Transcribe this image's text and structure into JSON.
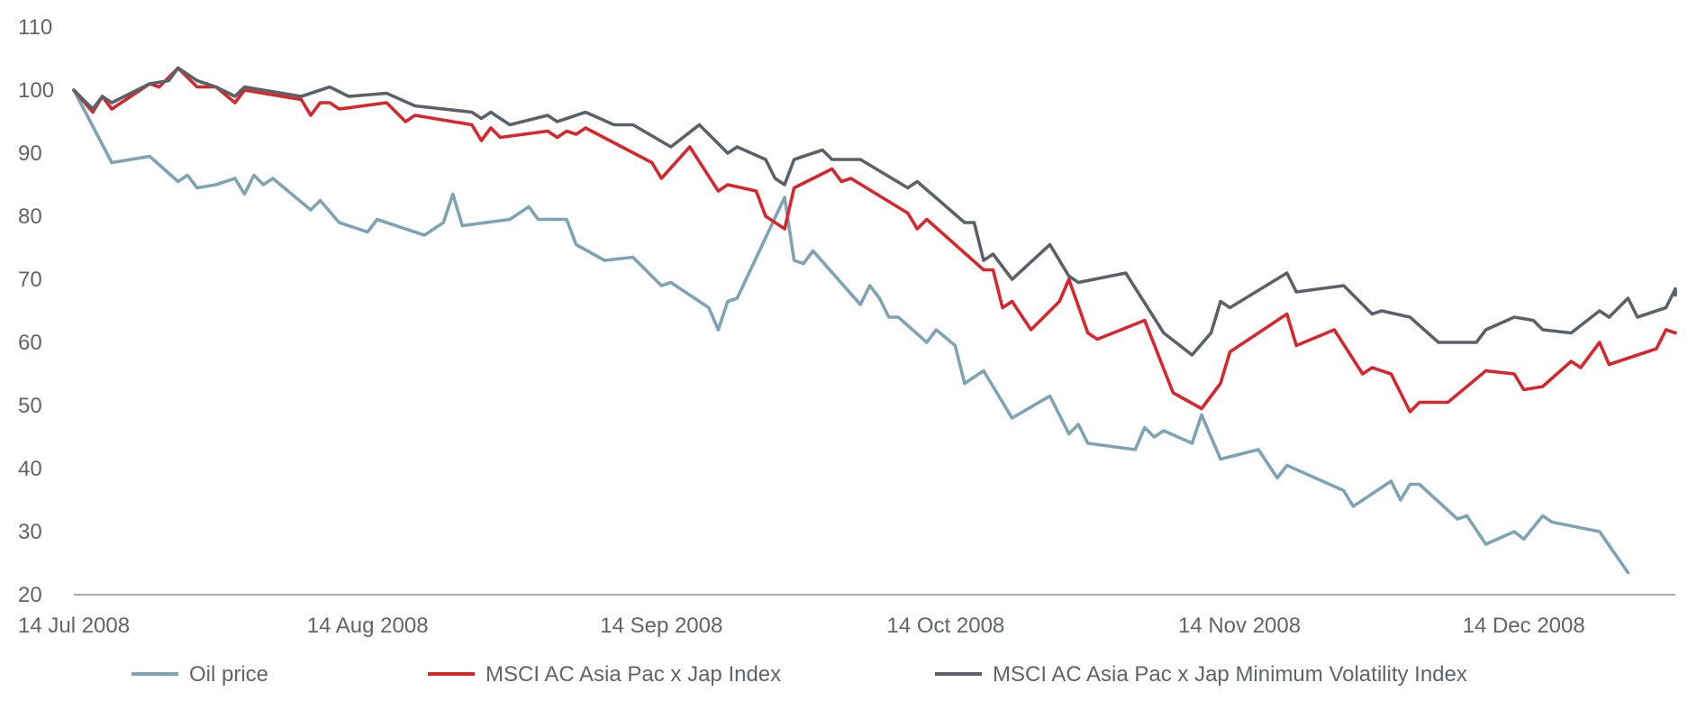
{
  "chart_data": {
    "type": "line",
    "title": "",
    "xlabel": "",
    "ylabel": "",
    "ylim": [
      20,
      110
    ],
    "yticks": [
      20,
      30,
      40,
      50,
      60,
      70,
      80,
      90,
      100,
      110
    ],
    "xlim": [
      "2008-07-14",
      "2008-12-30"
    ],
    "xticks": [
      {
        "date": "2008-07-14",
        "label": "14 Jul 2008"
      },
      {
        "date": "2008-08-14",
        "label": "14 Aug 2008"
      },
      {
        "date": "2008-09-14",
        "label": "14 Sep 2008"
      },
      {
        "date": "2008-10-14",
        "label": "14 Oct 2008"
      },
      {
        "date": "2008-11-14",
        "label": "14 Nov 2008"
      },
      {
        "date": "2008-12-14",
        "label": "14 Dec 2008"
      }
    ],
    "grid": false,
    "legend": "bottom",
    "series": [
      {
        "name": "Oil price",
        "color": "#7ea3b5",
        "points": [
          [
            "2008-07-14",
            100
          ],
          [
            "2008-07-18",
            88.5
          ],
          [
            "2008-07-22",
            89.5
          ],
          [
            "2008-07-25",
            85.5
          ],
          [
            "2008-07-26",
            86.5
          ],
          [
            "2008-07-27",
            84.5
          ],
          [
            "2008-07-29",
            85
          ],
          [
            "2008-07-31",
            86
          ],
          [
            "2008-08-01",
            83.5
          ],
          [
            "2008-08-02",
            86.5
          ],
          [
            "2008-08-03",
            85
          ],
          [
            "2008-08-04",
            86
          ],
          [
            "2008-08-08",
            81
          ],
          [
            "2008-08-09",
            82.5
          ],
          [
            "2008-08-11",
            79
          ],
          [
            "2008-08-14",
            77.5
          ],
          [
            "2008-08-15",
            79.5
          ],
          [
            "2008-08-20",
            77
          ],
          [
            "2008-08-22",
            79
          ],
          [
            "2008-08-23",
            83.5
          ],
          [
            "2008-08-24",
            78.5
          ],
          [
            "2008-08-29",
            79.5
          ],
          [
            "2008-08-31",
            81.5
          ],
          [
            "2008-09-01",
            79.5
          ],
          [
            "2008-09-04",
            79.5
          ],
          [
            "2008-09-05",
            75.5
          ],
          [
            "2008-09-08",
            73
          ],
          [
            "2008-09-11",
            73.5
          ],
          [
            "2008-09-14",
            69
          ],
          [
            "2008-09-15",
            69.5
          ],
          [
            "2008-09-19",
            65.5
          ],
          [
            "2008-09-20",
            62
          ],
          [
            "2008-09-21",
            66.5
          ],
          [
            "2008-09-22",
            67
          ],
          [
            "2008-09-27",
            83
          ],
          [
            "2008-09-28",
            73
          ],
          [
            "2008-09-29",
            72.5
          ],
          [
            "2008-09-30",
            74.5
          ],
          [
            "2008-10-05",
            66
          ],
          [
            "2008-10-06",
            69
          ],
          [
            "2008-10-07",
            67
          ],
          [
            "2008-10-08",
            64
          ],
          [
            "2008-10-09",
            64
          ],
          [
            "2008-10-12",
            60
          ],
          [
            "2008-10-13",
            62
          ],
          [
            "2008-10-15",
            59.5
          ],
          [
            "2008-10-16",
            53.5
          ],
          [
            "2008-10-18",
            55.5
          ],
          [
            "2008-10-21",
            48
          ],
          [
            "2008-10-25",
            51.5
          ],
          [
            "2008-10-27",
            45.5
          ],
          [
            "2008-10-28",
            47
          ],
          [
            "2008-10-29",
            44
          ],
          [
            "2008-11-03",
            43
          ],
          [
            "2008-11-04",
            46.5
          ],
          [
            "2008-11-05",
            45
          ],
          [
            "2008-11-06",
            46
          ],
          [
            "2008-11-09",
            44
          ],
          [
            "2008-11-10",
            48.5
          ],
          [
            "2008-11-12",
            41.5
          ],
          [
            "2008-11-16",
            43
          ],
          [
            "2008-11-18",
            38.5
          ],
          [
            "2008-11-19",
            40.5
          ],
          [
            "2008-11-25",
            36.5
          ],
          [
            "2008-11-26",
            34
          ],
          [
            "2008-11-30",
            38
          ],
          [
            "2008-12-01",
            35
          ],
          [
            "2008-12-02",
            37.5
          ],
          [
            "2008-12-03",
            37.5
          ],
          [
            "2008-12-07",
            32
          ],
          [
            "2008-12-08",
            32.5
          ],
          [
            "2008-12-10",
            28
          ],
          [
            "2008-12-13",
            30
          ],
          [
            "2008-12-14",
            28.8
          ],
          [
            "2008-12-16",
            32.5
          ],
          [
            "2008-12-17",
            31.5
          ],
          [
            "2008-12-22",
            30
          ],
          [
            "2008-12-25",
            23.5
          ]
        ]
      },
      {
        "name": "MSCI AC Asia Pac x Jap Index",
        "color": "#d7262c",
        "points": [
          [
            "2008-07-14",
            100
          ],
          [
            "2008-07-16",
            96.5
          ],
          [
            "2008-07-17",
            99
          ],
          [
            "2008-07-18",
            97
          ],
          [
            "2008-07-22",
            101
          ],
          [
            "2008-07-23",
            100.5
          ],
          [
            "2008-07-25",
            103.5
          ],
          [
            "2008-07-27",
            100.5
          ],
          [
            "2008-07-29",
            100.5
          ],
          [
            "2008-07-31",
            98
          ],
          [
            "2008-08-01",
            100
          ],
          [
            "2008-08-07",
            98.5
          ],
          [
            "2008-08-08",
            96
          ],
          [
            "2008-08-09",
            98
          ],
          [
            "2008-08-10",
            98
          ],
          [
            "2008-08-11",
            97
          ],
          [
            "2008-08-16",
            98
          ],
          [
            "2008-08-18",
            95
          ],
          [
            "2008-08-19",
            96
          ],
          [
            "2008-08-25",
            94.5
          ],
          [
            "2008-08-26",
            92
          ],
          [
            "2008-08-27",
            94
          ],
          [
            "2008-08-28",
            92.5
          ],
          [
            "2008-09-02",
            93.5
          ],
          [
            "2008-09-03",
            92.5
          ],
          [
            "2008-09-04",
            93.5
          ],
          [
            "2008-09-05",
            93
          ],
          [
            "2008-09-06",
            94
          ],
          [
            "2008-09-13",
            88.5
          ],
          [
            "2008-09-14",
            86
          ],
          [
            "2008-09-17",
            91
          ],
          [
            "2008-09-20",
            84
          ],
          [
            "2008-09-21",
            85
          ],
          [
            "2008-09-24",
            84
          ],
          [
            "2008-09-25",
            80
          ],
          [
            "2008-09-27",
            78
          ],
          [
            "2008-09-28",
            84.5
          ],
          [
            "2008-10-02",
            87.5
          ],
          [
            "2008-10-03",
            85.5
          ],
          [
            "2008-10-04",
            86
          ],
          [
            "2008-10-10",
            80.5
          ],
          [
            "2008-10-11",
            78
          ],
          [
            "2008-10-12",
            79.5
          ],
          [
            "2008-10-18",
            71.5
          ],
          [
            "2008-10-19",
            71.5
          ],
          [
            "2008-10-20",
            65.5
          ],
          [
            "2008-10-21",
            66.5
          ],
          [
            "2008-10-23",
            62
          ],
          [
            "2008-10-26",
            66.5
          ],
          [
            "2008-10-27",
            70
          ],
          [
            "2008-10-29",
            61.5
          ],
          [
            "2008-10-30",
            60.5
          ],
          [
            "2008-11-04",
            63.5
          ],
          [
            "2008-11-07",
            52
          ],
          [
            "2008-11-10",
            49.5
          ],
          [
            "2008-11-12",
            53.5
          ],
          [
            "2008-11-13",
            58.5
          ],
          [
            "2008-11-19",
            64.5
          ],
          [
            "2008-11-20",
            59.5
          ],
          [
            "2008-11-24",
            62
          ],
          [
            "2008-11-27",
            55
          ],
          [
            "2008-11-28",
            56
          ],
          [
            "2008-11-30",
            55
          ],
          [
            "2008-12-02",
            49
          ],
          [
            "2008-12-03",
            50.5
          ],
          [
            "2008-12-06",
            50.5
          ],
          [
            "2008-12-10",
            55.5
          ],
          [
            "2008-12-13",
            55
          ],
          [
            "2008-12-14",
            52.5
          ],
          [
            "2008-12-16",
            53
          ],
          [
            "2008-12-19",
            57
          ],
          [
            "2008-12-20",
            56
          ],
          [
            "2008-12-22",
            60
          ],
          [
            "2008-12-23",
            56.5
          ],
          [
            "2008-12-28",
            59
          ],
          [
            "2008-12-29",
            62
          ],
          [
            "2008-12-30",
            61.5
          ]
        ]
      },
      {
        "name": "MSCI AC Asia Pac x Jap Minimum Volatility Index",
        "color": "#5b6169",
        "points": [
          [
            "2008-07-14",
            100
          ],
          [
            "2008-07-16",
            97
          ],
          [
            "2008-07-17",
            99
          ],
          [
            "2008-07-18",
            98
          ],
          [
            "2008-07-22",
            101
          ],
          [
            "2008-07-24",
            101.5
          ],
          [
            "2008-07-25",
            103.5
          ],
          [
            "2008-07-27",
            101.5
          ],
          [
            "2008-07-29",
            100.5
          ],
          [
            "2008-07-31",
            99
          ],
          [
            "2008-08-01",
            100.5
          ],
          [
            "2008-08-07",
            99
          ],
          [
            "2008-08-10",
            100.5
          ],
          [
            "2008-08-12",
            99
          ],
          [
            "2008-08-16",
            99.5
          ],
          [
            "2008-08-19",
            97.5
          ],
          [
            "2008-08-25",
            96.5
          ],
          [
            "2008-08-26",
            95.5
          ],
          [
            "2008-08-27",
            96.5
          ],
          [
            "2008-08-29",
            94.5
          ],
          [
            "2008-09-02",
            96
          ],
          [
            "2008-09-03",
            95
          ],
          [
            "2008-09-06",
            96.5
          ],
          [
            "2008-09-09",
            94.5
          ],
          [
            "2008-09-11",
            94.5
          ],
          [
            "2008-09-15",
            91
          ],
          [
            "2008-09-18",
            94.5
          ],
          [
            "2008-09-21",
            90
          ],
          [
            "2008-09-22",
            91
          ],
          [
            "2008-09-25",
            89
          ],
          [
            "2008-09-26",
            86
          ],
          [
            "2008-09-27",
            85
          ],
          [
            "2008-09-28",
            89
          ],
          [
            "2008-10-01",
            90.5
          ],
          [
            "2008-10-02",
            89
          ],
          [
            "2008-10-05",
            89
          ],
          [
            "2008-10-10",
            84.5
          ],
          [
            "2008-10-11",
            85.5
          ],
          [
            "2008-10-16",
            79
          ],
          [
            "2008-10-17",
            79
          ],
          [
            "2008-10-18",
            73
          ],
          [
            "2008-10-19",
            74
          ],
          [
            "2008-10-21",
            70
          ],
          [
            "2008-10-25",
            75.5
          ],
          [
            "2008-10-27",
            70.5
          ],
          [
            "2008-10-28",
            69.5
          ],
          [
            "2008-11-02",
            71
          ],
          [
            "2008-11-06",
            61.5
          ],
          [
            "2008-11-09",
            58
          ],
          [
            "2008-11-11",
            61.5
          ],
          [
            "2008-11-12",
            66.5
          ],
          [
            "2008-11-13",
            65.5
          ],
          [
            "2008-11-19",
            71
          ],
          [
            "2008-11-20",
            68
          ],
          [
            "2008-11-25",
            69
          ],
          [
            "2008-11-28",
            64.5
          ],
          [
            "2008-11-29",
            65
          ],
          [
            "2008-12-02",
            64
          ],
          [
            "2008-12-05",
            60
          ],
          [
            "2008-12-09",
            60
          ],
          [
            "2008-12-10",
            62
          ],
          [
            "2008-12-13",
            64
          ],
          [
            "2008-12-15",
            63.5
          ],
          [
            "2008-12-16",
            62
          ],
          [
            "2008-12-19",
            61.5
          ],
          [
            "2008-12-22",
            65
          ],
          [
            "2008-12-23",
            64
          ],
          [
            "2008-12-25",
            67
          ],
          [
            "2008-12-26",
            64
          ],
          [
            "2008-12-29",
            65.5
          ],
          [
            "2008-12-31",
            68.5
          ],
          [
            "2009-01-01",
            67.5
          ]
        ]
      }
    ]
  }
}
